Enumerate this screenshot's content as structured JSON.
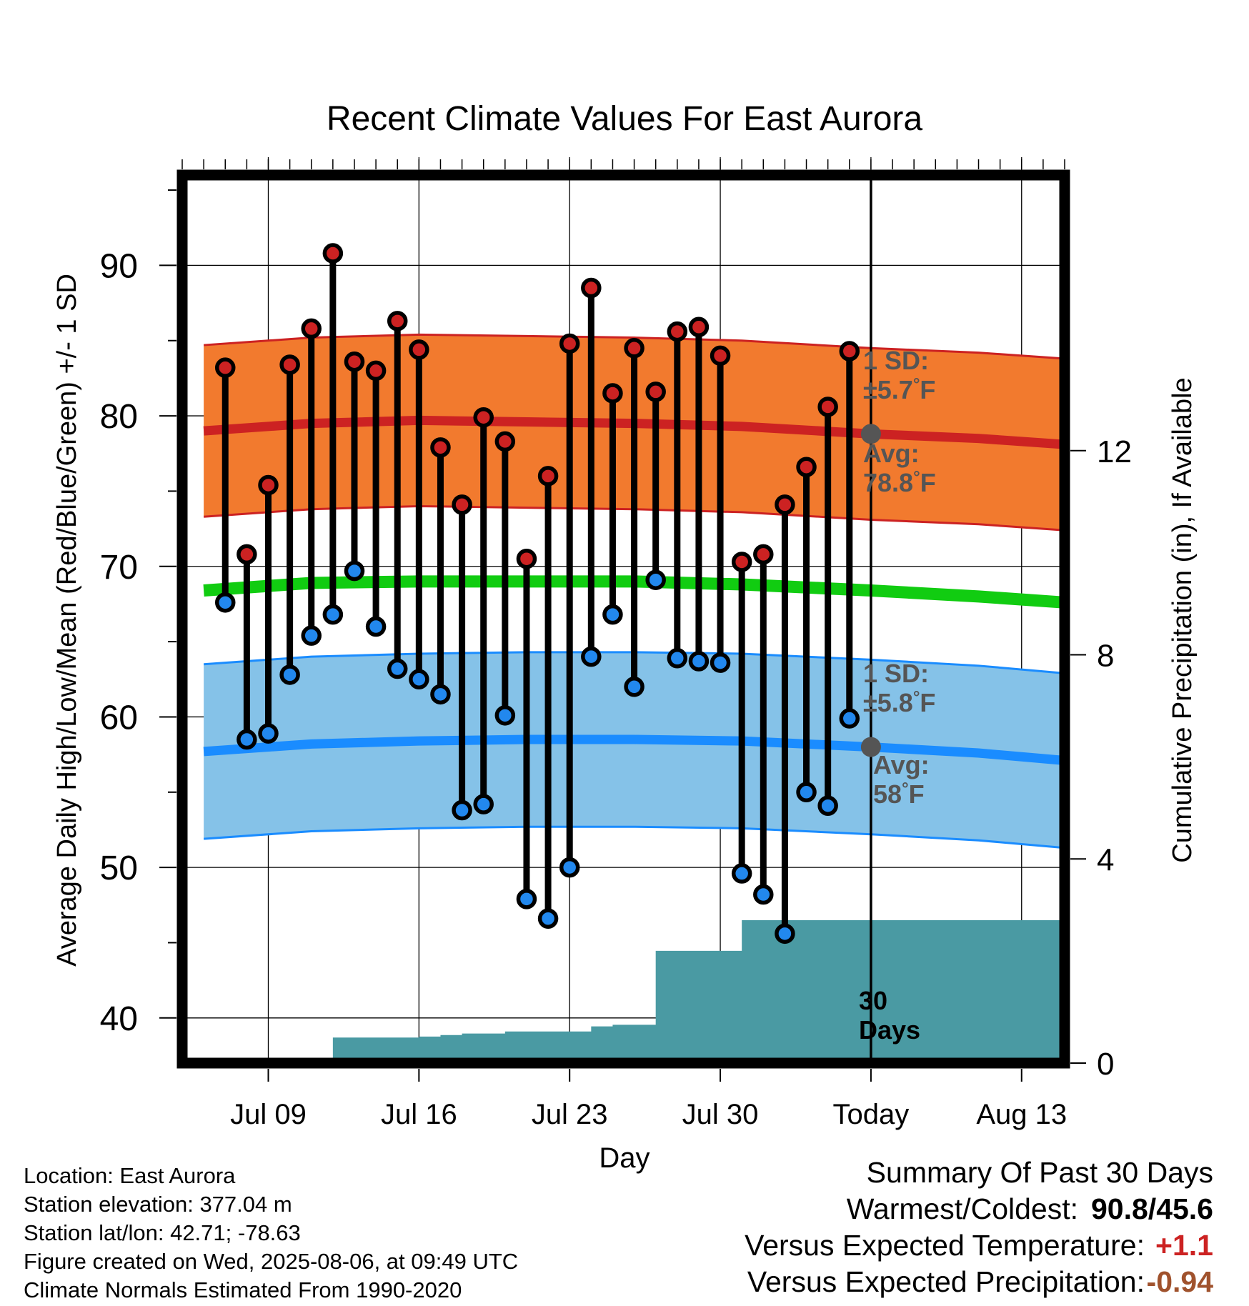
{
  "chart_data": {
    "type": "line",
    "title": "Recent Climate Values For East Aurora",
    "xlabel": "Day",
    "ylabel": "Average Daily High/Low/Mean (Red/Blue/Green) +/- 1 SD",
    "y2label": "Cumulative Precipitation (in), If Available",
    "ylim": [
      37,
      96
    ],
    "y2lim": [
      0,
      17.4
    ],
    "x_tick_labels": [
      "Jul 09",
      "Jul 16",
      "Jul 23",
      "Jul 30",
      "Today",
      "Aug 13"
    ],
    "x_tick_dates": [
      "2025-07-09",
      "2025-07-16",
      "2025-07-23",
      "2025-07-30",
      "2025-08-06",
      "2025-08-13"
    ],
    "y_ticks": [
      40,
      50,
      60,
      70,
      80,
      90
    ],
    "y2_ticks": [
      0,
      4,
      8,
      12
    ],
    "x_range": [
      "2025-07-05",
      "2025-08-15"
    ],
    "grid": true,
    "today": "2025-08-06",
    "daily_dates": [
      "2025-07-07",
      "2025-07-08",
      "2025-07-09",
      "2025-07-10",
      "2025-07-11",
      "2025-07-12",
      "2025-07-13",
      "2025-07-14",
      "2025-07-15",
      "2025-07-16",
      "2025-07-17",
      "2025-07-18",
      "2025-07-19",
      "2025-07-20",
      "2025-07-21",
      "2025-07-22",
      "2025-07-23",
      "2025-07-24",
      "2025-07-25",
      "2025-07-26",
      "2025-07-27",
      "2025-07-28",
      "2025-07-29",
      "2025-07-30",
      "2025-07-31",
      "2025-08-01",
      "2025-08-02",
      "2025-08-03",
      "2025-08-04",
      "2025-08-05"
    ],
    "series": [
      {
        "name": "High",
        "color": "#cc2222",
        "values": [
          83.2,
          70.8,
          75.4,
          83.4,
          85.8,
          90.8,
          83.6,
          83.0,
          86.3,
          84.4,
          77.9,
          74.1,
          79.9,
          78.3,
          70.5,
          76.0,
          84.8,
          88.5,
          81.5,
          84.5,
          81.6,
          85.6,
          85.9,
          84.0,
          70.3,
          70.8,
          74.1,
          76.6,
          80.6,
          84.3
        ]
      },
      {
        "name": "Low",
        "color": "#2288ee",
        "values": [
          67.6,
          58.5,
          58.9,
          62.8,
          65.4,
          66.8,
          69.7,
          66.0,
          63.2,
          62.5,
          61.5,
          53.8,
          54.2,
          60.1,
          47.9,
          46.6,
          50.0,
          64.0,
          66.8,
          62.0,
          69.1,
          63.9,
          63.7,
          63.6,
          49.6,
          48.2,
          45.6,
          55.0,
          54.1,
          59.9
        ]
      }
    ],
    "normals": {
      "dates": [
        "2025-07-06",
        "2025-07-11",
        "2025-07-16",
        "2025-07-21",
        "2025-07-26",
        "2025-07-31",
        "2025-08-06",
        "2025-08-11",
        "2025-08-15"
      ],
      "high_mean": [
        79.0,
        79.5,
        79.7,
        79.6,
        79.5,
        79.3,
        78.8,
        78.5,
        78.1
      ],
      "high_sd": 5.7,
      "low_mean": [
        57.7,
        58.2,
        58.4,
        58.5,
        58.5,
        58.4,
        58.0,
        57.6,
        57.1
      ],
      "low_sd": 5.8,
      "mean": [
        68.4,
        68.9,
        69.0,
        69.0,
        69.0,
        68.8,
        68.4,
        68.0,
        67.6
      ],
      "colors": {
        "high_band": "#f27a2e",
        "high_line": "#cc2222",
        "low_band": "#85c2e8",
        "low_line": "#1a8cff",
        "mean_line": "#11cc11"
      }
    },
    "precipitation": {
      "color": "#4a9aa3",
      "dates": [
        "2025-07-07",
        "2025-07-08",
        "2025-07-09",
        "2025-07-10",
        "2025-07-11",
        "2025-07-12",
        "2025-07-13",
        "2025-07-14",
        "2025-07-15",
        "2025-07-16",
        "2025-07-17",
        "2025-07-18",
        "2025-07-19",
        "2025-07-20",
        "2025-07-21",
        "2025-07-22",
        "2025-07-23",
        "2025-07-24",
        "2025-07-25",
        "2025-07-26",
        "2025-07-27",
        "2025-07-28",
        "2025-07-29",
        "2025-07-30",
        "2025-07-31",
        "2025-08-01",
        "2025-08-02",
        "2025-08-03",
        "2025-08-04",
        "2025-08-05",
        "2025-08-06",
        "2025-08-15"
      ],
      "values": [
        0,
        0,
        0,
        0,
        0,
        0.5,
        0.5,
        0.5,
        0.5,
        0.52,
        0.55,
        0.58,
        0.58,
        0.62,
        0.62,
        0.62,
        0.62,
        0.72,
        0.75,
        0.75,
        2.2,
        2.2,
        2.2,
        2.2,
        2.8,
        2.8,
        2.8,
        2.8,
        2.8,
        2.8,
        2.8,
        2.8
      ]
    },
    "annotations": {
      "high_sd": [
        "1 SD:",
        "±5.7",
        "°F"
      ],
      "high_avg": [
        "Avg:",
        "78.8",
        "°F"
      ],
      "low_sd": [
        "1 SD:",
        "±5.8",
        "°F"
      ],
      "low_avg": [
        "Avg:",
        "58",
        "°F"
      ],
      "window": [
        "30",
        "Days"
      ]
    }
  },
  "footer": {
    "location": "Location: East Aurora",
    "elevation": "Station elevation: 377.04 m",
    "latlon": "Station lat/lon: 42.71; -78.63",
    "created": "Figure created on Wed, 2025-08-06, at 09:49 UTC",
    "normals": "Climate Normals Estimated From 1990-2020"
  },
  "summary": {
    "title": "Summary Of Past 30 Days",
    "warm_cold_label": "Warmest/Coldest:",
    "warm_cold_value": "90.8/45.6",
    "temp_label": "Versus Expected Temperature:",
    "temp_value": "+1.1",
    "temp_color": "#cc2222",
    "precip_label": "Versus Expected Precipitation:",
    "precip_value": "-0.94",
    "precip_color": "#a0522d"
  }
}
